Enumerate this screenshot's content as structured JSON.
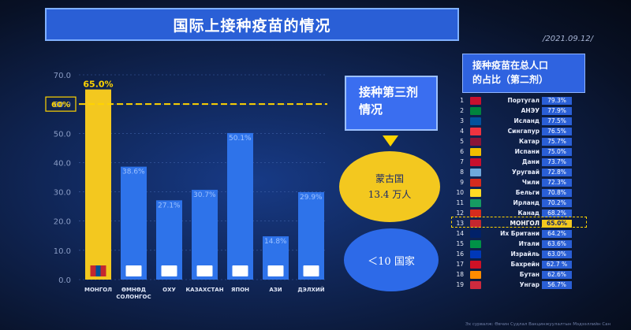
{
  "title": "国际上接种疫苗的情况",
  "date": "/2021.09.12/",
  "chart_data": {
    "type": "bar",
    "categories": [
      "МОНГОЛ",
      "ӨМНӨД СОЛОНГОС",
      "ОХУ",
      "КАЗАХСТАН",
      "ЯПОН",
      "АЗИ",
      "ДЭЛХИЙ"
    ],
    "values": [
      65.0,
      38.6,
      27.1,
      30.7,
      50.1,
      14.8,
      29.9
    ],
    "value_labels": [
      "65.0%",
      "38.6%",
      "27.1%",
      "30.7%",
      "50.1%",
      "14.8%",
      "29.9%"
    ],
    "ylim": [
      0,
      70
    ],
    "yticks": [
      "0.0",
      "10.0",
      "20.0",
      "30.0",
      "40.0",
      "50.0",
      "60.0",
      "70.0"
    ],
    "reference_line": {
      "value": 60,
      "label": "60%"
    },
    "bar_colors": [
      "#f3c81f",
      "#2e73ea",
      "#2e73ea",
      "#2e73ea",
      "#2e73ea",
      "#2e73ea",
      "#2e73ea"
    ],
    "category_icons": [
      "mongolia-flag-icon",
      "south-korea-flag-icon",
      "russia-flag-icon",
      "kazakhstan-flag-icon",
      "japan-flag-icon",
      "asia-map-icon",
      "world-map-icon"
    ]
  },
  "callout": {
    "line1": "接种第三剂",
    "line2": "情况"
  },
  "yellow_oval": {
    "line1": "蒙古国",
    "line2": "13.4 万人"
  },
  "blue_oval": {
    "text": "＜10 国家"
  },
  "right_panel": {
    "title_line1": "接种疫苗在总人口",
    "title_line2": "的占比（第二剂）",
    "rows": [
      {
        "rank": "1",
        "country": "Португал",
        "value": "79.3%",
        "flag": "#c8102e"
      },
      {
        "rank": "2",
        "country": "АНЭУ",
        "value": "77.9%",
        "flag": "#00843d"
      },
      {
        "rank": "3",
        "country": "Исланд",
        "value": "77.5%",
        "flag": "#02529c"
      },
      {
        "rank": "4",
        "country": "Сингапур",
        "value": "76.5%",
        "flag": "#ef3340"
      },
      {
        "rank": "5",
        "country": "Катар",
        "value": "75.7%",
        "flag": "#8a1538"
      },
      {
        "rank": "6",
        "country": "Испани",
        "value": "75.0%",
        "flag": "#f1bf00"
      },
      {
        "rank": "7",
        "country": "Дани",
        "value": "73.7%",
        "flag": "#c8102e"
      },
      {
        "rank": "8",
        "country": "Уругвай",
        "value": "72.8%",
        "flag": "#6fa8dc"
      },
      {
        "rank": "9",
        "country": "Чили",
        "value": "72.3%",
        "flag": "#d52b1e"
      },
      {
        "rank": "10",
        "country": "Бельги",
        "value": "70.8%",
        "flag": "#fdda24"
      },
      {
        "rank": "11",
        "country": "Ирланд",
        "value": "70.2%",
        "flag": "#169b62"
      },
      {
        "rank": "12",
        "country": "Канад",
        "value": "68.2%",
        "flag": "#d52b1e"
      },
      {
        "rank": "13",
        "country": "МОНГОЛ",
        "value": "65.0%",
        "flag": "#c4272f",
        "highlight": true
      },
      {
        "rank": "14",
        "country": "Их Британи",
        "value": "64.2%",
        "flag": "#012169"
      },
      {
        "rank": "15",
        "country": "Итали",
        "value": "63.6%",
        "flag": "#009246"
      },
      {
        "rank": "16",
        "country": "Израйль",
        "value": "63.0%",
        "flag": "#0038b8"
      },
      {
        "rank": "17",
        "country": "Бахрейн",
        "value": "62.7 %",
        "flag": "#ce1126"
      },
      {
        "rank": "18",
        "country": "Бутан",
        "value": "62.6%",
        "flag": "#ff8c00"
      },
      {
        "rank": "19",
        "country": "Унгар",
        "value": "56.7%",
        "flag": "#cd2a3e"
      }
    ]
  },
  "source": "Эх сурвалж: Өвчин Судлал Вакцинжуулалтын Мэдээллийн Сан"
}
